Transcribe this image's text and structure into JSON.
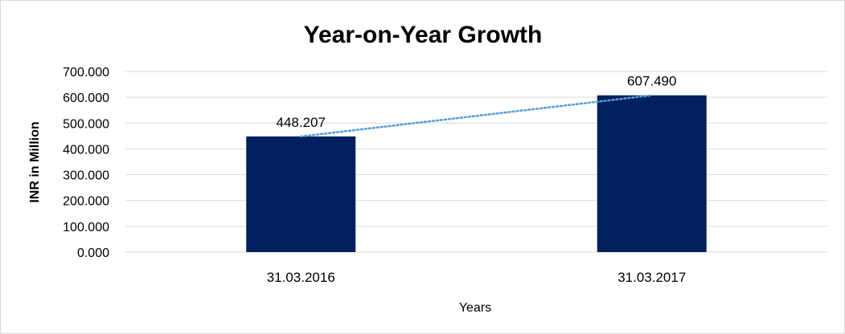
{
  "chart_data": {
    "type": "bar",
    "title": "Year-on-Year Growth",
    "xlabel": "Years",
    "ylabel": "INR in Million",
    "categories": [
      "31.03.2016",
      "31.03.2017"
    ],
    "values": [
      448.207,
      607.49
    ],
    "data_labels": [
      "448.207",
      "607.490"
    ],
    "ylim": [
      0,
      700
    ],
    "yticks": [
      0,
      100,
      200,
      300,
      400,
      500,
      600,
      700
    ],
    "ytick_labels": [
      "0.000",
      "100.000",
      "200.000",
      "300.000",
      "400.000",
      "500.000",
      "600.000",
      "700.000"
    ],
    "grid": true,
    "legend": "none",
    "trendline": {
      "type": "linear",
      "style": "dotted"
    },
    "colors": {
      "bar": "#002060",
      "trendline": "#5b9bd5",
      "grid": "#d9d9d9",
      "frame": "#d9d9d9"
    }
  }
}
